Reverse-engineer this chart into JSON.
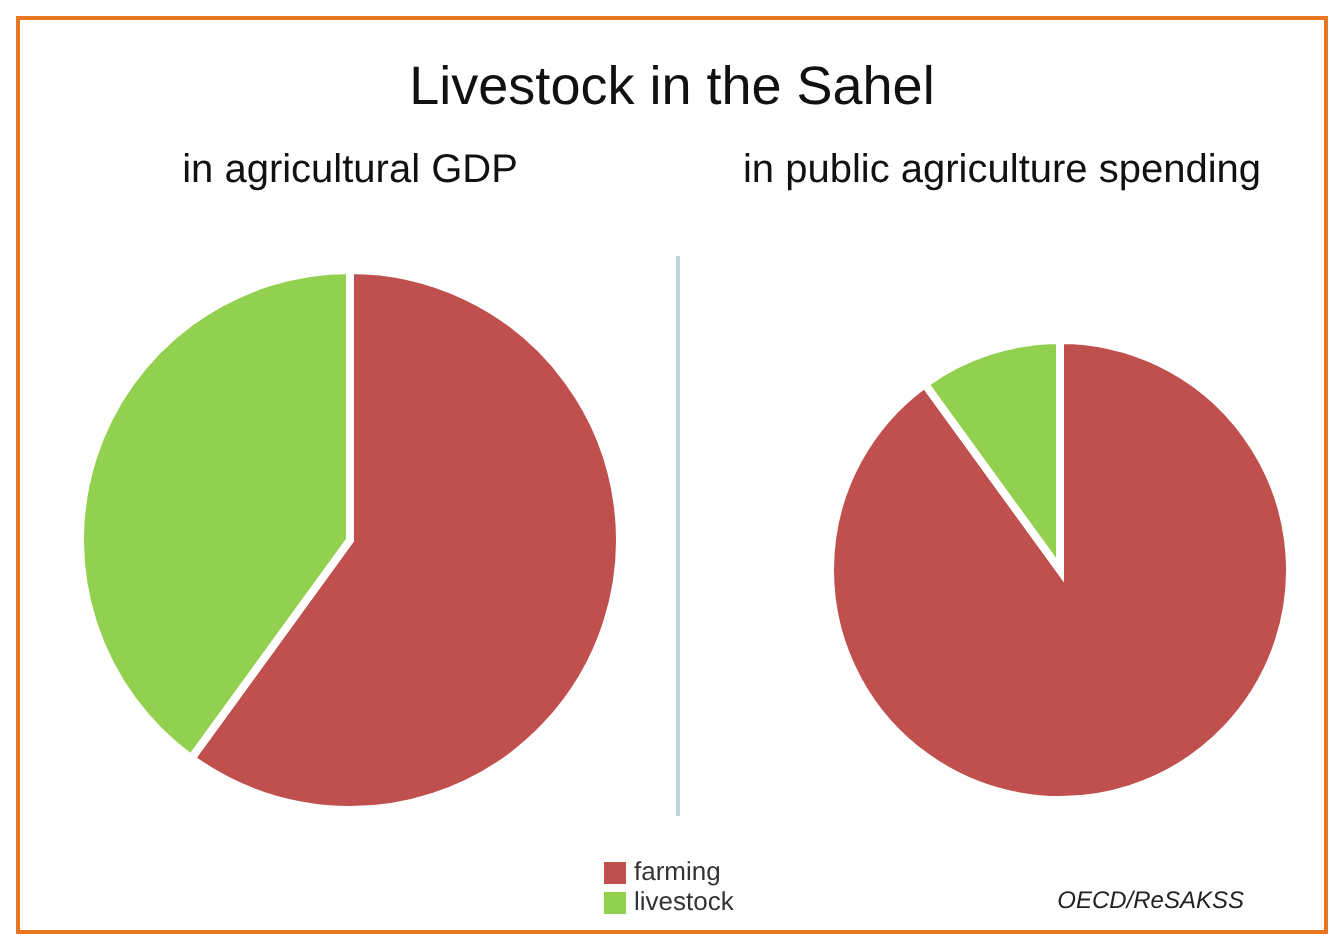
{
  "chart_data": [
    {
      "type": "pie",
      "title": "Livestock in the Sahel",
      "subtitle": "in agricultural GDP",
      "categories": [
        "farming",
        "livestock"
      ],
      "values": [
        60,
        40
      ],
      "colors": [
        "#c0504d",
        "#92d050"
      ],
      "legend": "bottom"
    },
    {
      "type": "pie",
      "subtitle": "in public agriculture spending",
      "categories": [
        null,
        null
      ],
      "values": [
        90,
        10
      ],
      "colors": [
        "#c0504d",
        "#92d050"
      ],
      "annotations": [
        "OECD/ReSAKSS"
      ]
    }
  ]
}
